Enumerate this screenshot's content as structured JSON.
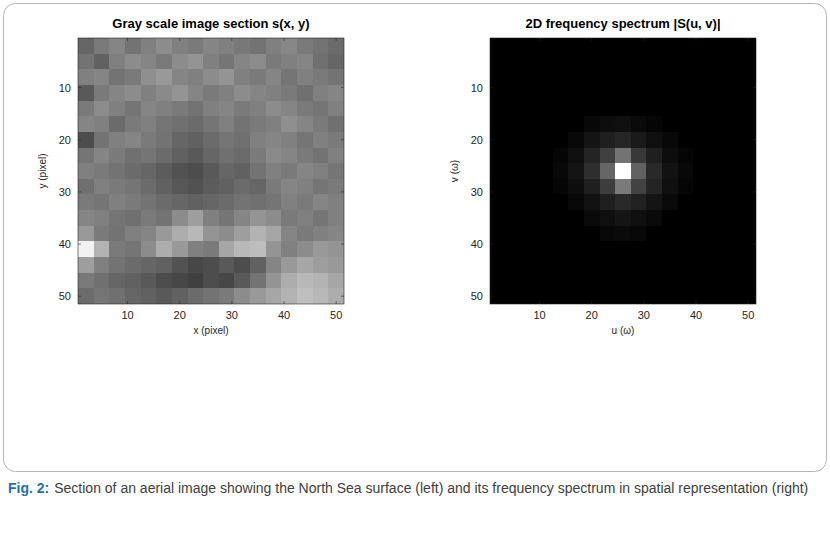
{
  "chart_data": [
    {
      "type": "heatmap",
      "title": "Gray scale image section s(x, y)",
      "xlabel": "x (pixel)",
      "ylabel": "y (pixel)",
      "xlim": [
        0.5,
        51.5
      ],
      "ylim": [
        51.5,
        0.5
      ],
      "xticks": [
        10,
        20,
        30,
        40,
        50
      ],
      "yticks": [
        10,
        20,
        30,
        40,
        50
      ],
      "color": "#ffffff",
      "color_range": [
        0,
        100
      ],
      "cells": [
        [
          40,
          48,
          52,
          45,
          50,
          55,
          50,
          48,
          52,
          50,
          47,
          45,
          50,
          53,
          48,
          45,
          42
        ],
        [
          45,
          38,
          50,
          55,
          52,
          48,
          55,
          58,
          50,
          46,
          52,
          55,
          48,
          50,
          52,
          44,
          40
        ],
        [
          50,
          52,
          45,
          48,
          56,
          60,
          52,
          50,
          55,
          58,
          50,
          48,
          52,
          46,
          50,
          48,
          45
        ],
        [
          35,
          48,
          52,
          55,
          50,
          54,
          58,
          52,
          48,
          50,
          55,
          52,
          50,
          48,
          44,
          50,
          52
        ],
        [
          48,
          55,
          50,
          46,
          52,
          50,
          48,
          45,
          50,
          52,
          48,
          50,
          55,
          52,
          48,
          46,
          50
        ],
        [
          52,
          50,
          42,
          48,
          50,
          46,
          44,
          42,
          46,
          50,
          45,
          48,
          50,
          56,
          52,
          48,
          44
        ],
        [
          30,
          45,
          50,
          52,
          48,
          45,
          40,
          38,
          42,
          46,
          44,
          50,
          52,
          50,
          46,
          50,
          48
        ],
        [
          46,
          52,
          48,
          44,
          46,
          42,
          38,
          35,
          40,
          44,
          42,
          48,
          54,
          52,
          48,
          45,
          50
        ],
        [
          50,
          48,
          45,
          42,
          40,
          36,
          32,
          30,
          35,
          40,
          38,
          45,
          50,
          48,
          52,
          50,
          46
        ],
        [
          44,
          50,
          48,
          46,
          42,
          38,
          34,
          32,
          36,
          38,
          42,
          40,
          48,
          52,
          50,
          46,
          48
        ],
        [
          48,
          46,
          50,
          48,
          45,
          42,
          40,
          38,
          40,
          42,
          45,
          44,
          46,
          50,
          48,
          52,
          50
        ],
        [
          52,
          50,
          46,
          44,
          48,
          45,
          55,
          62,
          50,
          46,
          52,
          58,
          55,
          48,
          50,
          46,
          50
        ],
        [
          60,
          48,
          45,
          50,
          52,
          60,
          68,
          72,
          58,
          55,
          62,
          70,
          65,
          52,
          48,
          50,
          52
        ],
        [
          95,
          70,
          48,
          46,
          55,
          68,
          60,
          50,
          48,
          65,
          72,
          74,
          58,
          50,
          55,
          60,
          58
        ],
        [
          62,
          50,
          45,
          42,
          40,
          38,
          32,
          28,
          30,
          35,
          30,
          38,
          52,
          60,
          65,
          62,
          60
        ],
        [
          48,
          44,
          40,
          38,
          35,
          30,
          28,
          25,
          30,
          28,
          35,
          45,
          58,
          68,
          72,
          70,
          65
        ],
        [
          42,
          46,
          44,
          40,
          38,
          35,
          38,
          42,
          45,
          48,
          55,
          60,
          65,
          70,
          75,
          72,
          68
        ]
      ]
    },
    {
      "type": "heatmap",
      "title": "2D frequency spectrum |S(u, v)|",
      "xlabel": "u (ω)",
      "ylabel": "v (ω)",
      "xlim": [
        0.5,
        51.5
      ],
      "ylim": [
        51.5,
        0.5
      ],
      "xticks": [
        10,
        20,
        30,
        40,
        50
      ],
      "yticks": [
        10,
        20,
        30,
        40,
        50
      ],
      "color": "#ffffff",
      "color_range": [
        0,
        100
      ],
      "cells": [
        [
          0,
          0,
          0,
          0,
          0,
          0,
          0,
          0,
          0,
          0,
          0,
          0,
          0,
          0,
          0,
          0,
          0
        ],
        [
          0,
          0,
          0,
          0,
          0,
          0,
          0,
          0,
          0,
          0,
          0,
          0,
          0,
          0,
          0,
          0,
          0
        ],
        [
          0,
          0,
          0,
          0,
          0,
          0,
          0,
          0,
          0,
          0,
          0,
          0,
          0,
          0,
          0,
          0,
          0
        ],
        [
          0,
          0,
          0,
          0,
          0,
          0,
          0,
          0,
          0,
          0,
          0,
          0,
          0,
          0,
          0,
          0,
          0
        ],
        [
          0,
          0,
          0,
          0,
          0,
          0,
          0,
          0,
          0,
          0,
          0,
          0,
          0,
          0,
          0,
          0,
          0
        ],
        [
          0,
          0,
          0,
          0,
          0,
          0,
          3,
          5,
          6,
          4,
          2,
          0,
          0,
          0,
          0,
          0,
          0
        ],
        [
          0,
          0,
          0,
          0,
          0,
          3,
          8,
          12,
          15,
          10,
          6,
          3,
          0,
          0,
          0,
          0,
          0
        ],
        [
          0,
          0,
          0,
          0,
          2,
          6,
          14,
          25,
          45,
          22,
          12,
          5,
          2,
          0,
          0,
          0,
          0
        ],
        [
          0,
          0,
          0,
          0,
          3,
          8,
          18,
          40,
          100,
          38,
          16,
          7,
          3,
          0,
          0,
          0,
          0
        ],
        [
          0,
          0,
          0,
          0,
          2,
          5,
          12,
          24,
          48,
          26,
          14,
          6,
          2,
          0,
          0,
          0,
          0
        ],
        [
          0,
          0,
          0,
          0,
          0,
          3,
          7,
          12,
          16,
          13,
          8,
          4,
          0,
          0,
          0,
          0,
          0
        ],
        [
          0,
          0,
          0,
          0,
          0,
          0,
          4,
          6,
          8,
          6,
          4,
          0,
          0,
          0,
          0,
          0,
          0
        ],
        [
          0,
          0,
          0,
          0,
          0,
          0,
          0,
          3,
          4,
          3,
          0,
          0,
          0,
          0,
          0,
          0,
          0
        ],
        [
          0,
          0,
          0,
          0,
          0,
          0,
          0,
          0,
          0,
          0,
          0,
          0,
          0,
          0,
          0,
          0,
          0
        ],
        [
          0,
          0,
          0,
          0,
          0,
          0,
          0,
          0,
          0,
          0,
          0,
          0,
          0,
          0,
          0,
          0,
          0
        ],
        [
          0,
          0,
          0,
          0,
          0,
          0,
          0,
          0,
          0,
          0,
          0,
          0,
          0,
          0,
          0,
          0,
          0
        ],
        [
          0,
          0,
          0,
          0,
          0,
          0,
          0,
          0,
          0,
          0,
          0,
          0,
          0,
          0,
          0,
          0,
          0
        ]
      ]
    }
  ],
  "figure": {
    "caption_label": "Fig. 2:",
    "caption_text": "Section of an aerial image showing the North Sea surface (left) and its frequency spectrum in spatial representation (right)"
  }
}
